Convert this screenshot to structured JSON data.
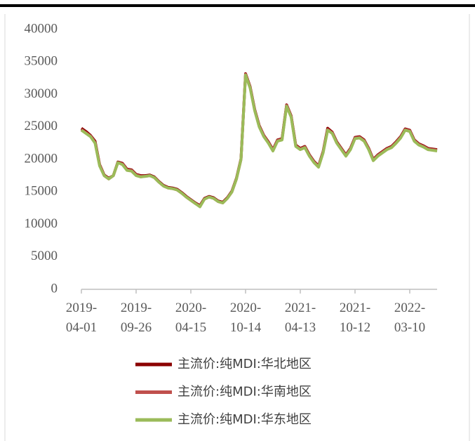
{
  "chart_data": {
    "type": "line",
    "categories": [
      "2019-04-01",
      null,
      null,
      null,
      null,
      null,
      null,
      null,
      null,
      null,
      null,
      null,
      "2019-09-26",
      null,
      null,
      null,
      null,
      null,
      null,
      null,
      null,
      null,
      null,
      null,
      "2020-04-15",
      null,
      null,
      null,
      null,
      null,
      null,
      null,
      null,
      null,
      null,
      null,
      "2020-10-14",
      null,
      null,
      null,
      null,
      null,
      null,
      null,
      null,
      null,
      null,
      null,
      "2021-04-13",
      null,
      null,
      null,
      null,
      null,
      null,
      null,
      null,
      null,
      null,
      null,
      "2021-10-12",
      null,
      null,
      null,
      null,
      null,
      null,
      null,
      null,
      null,
      null,
      null,
      "2022-03-10",
      null,
      null,
      null,
      null,
      null,
      null
    ],
    "series": [
      {
        "name": "主流价:纯MDI:华北地区",
        "color": "#8b0000",
        "values": [
          24800,
          24300,
          23700,
          22800,
          19200,
          17600,
          17100,
          17500,
          19600,
          19400,
          18500,
          18400,
          17700,
          17500,
          17500,
          17600,
          17300,
          16600,
          16000,
          15700,
          15600,
          15400,
          14900,
          14300,
          13800,
          13300,
          12900,
          14000,
          14300,
          14100,
          13600,
          13400,
          14100,
          15100,
          17100,
          20100,
          33200,
          31200,
          27700,
          25200,
          23700,
          22700,
          21500,
          23000,
          23200,
          28400,
          26700,
          22200,
          21700,
          22000,
          20700,
          19700,
          19000,
          21200,
          24800,
          24200,
          22700,
          21700,
          20700,
          21700,
          23400,
          23500,
          23000,
          21700,
          20000,
          20700,
          21200,
          21700,
          22000,
          22700,
          23500,
          24700,
          24500,
          23000,
          22400,
          22100,
          21700,
          21600,
          21500
        ]
      },
      {
        "name": "主流价:纯MDI:华南地区",
        "color": "#c0504d",
        "values": [
          24600,
          24100,
          23600,
          22600,
          19100,
          17500,
          17000,
          17500,
          19500,
          19300,
          18400,
          18300,
          17600,
          17400,
          17400,
          17500,
          17200,
          16500,
          15900,
          15600,
          15500,
          15300,
          14800,
          14200,
          13700,
          13200,
          12800,
          13900,
          14200,
          14000,
          13500,
          13300,
          14000,
          15000,
          17000,
          20000,
          33100,
          31100,
          27600,
          25100,
          23600,
          22600,
          21400,
          22900,
          23100,
          28300,
          26600,
          22100,
          21600,
          21900,
          20600,
          19600,
          18900,
          21100,
          24600,
          24100,
          22600,
          21600,
          20600,
          21600,
          23300,
          23400,
          22900,
          21600,
          19900,
          20600,
          21100,
          21600,
          21900,
          22600,
          23400,
          24600,
          24400,
          22900,
          22300,
          22000,
          21600,
          21500,
          21400
        ]
      },
      {
        "name": "主流价:纯MDI:华东地区",
        "color": "#9bbb59",
        "values": [
          24500,
          24000,
          23500,
          22500,
          19000,
          17500,
          17000,
          17500,
          19500,
          19200,
          18300,
          18200,
          17500,
          17300,
          17400,
          17500,
          17200,
          16500,
          15900,
          15600,
          15500,
          15300,
          14800,
          14200,
          13700,
          13200,
          12700,
          13900,
          14200,
          14000,
          13500,
          13300,
          14000,
          15000,
          17000,
          20000,
          33000,
          31000,
          27500,
          25000,
          23500,
          22500,
          21300,
          22800,
          23000,
          28200,
          26500,
          22000,
          21500,
          21800,
          20500,
          19500,
          18800,
          21000,
          24500,
          24000,
          22500,
          21500,
          20500,
          21500,
          23200,
          23300,
          22800,
          21500,
          19800,
          20500,
          21000,
          21500,
          21800,
          22500,
          23300,
          24500,
          24300,
          22800,
          22200,
          21900,
          21500,
          21400,
          21300
        ]
      }
    ],
    "ylim": [
      0,
      40000
    ],
    "yticks": [
      0,
      5000,
      10000,
      15000,
      20000,
      25000,
      30000,
      35000,
      40000
    ]
  }
}
